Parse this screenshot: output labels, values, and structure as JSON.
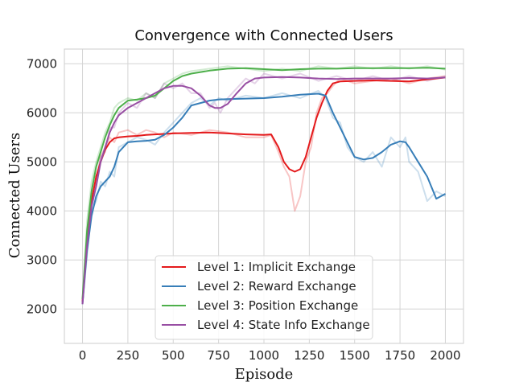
{
  "chart_data": {
    "type": "line",
    "title": "Convergence with Connected Users",
    "xlabel": "Episode",
    "ylabel": "Connected Users",
    "xlim": [
      -100,
      2100
    ],
    "ylim": [
      1300,
      7300
    ],
    "xticks": [
      0,
      250,
      500,
      750,
      1000,
      1250,
      1500,
      1750,
      2000
    ],
    "yticks": [
      2000,
      3000,
      4000,
      5000,
      6000,
      7000
    ],
    "grid": true,
    "legend_position": "lower-center",
    "series": [
      {
        "name": "Level 1: Implicit Exchange",
        "color": "#e41a1c",
        "x": [
          0,
          25,
          50,
          75,
          100,
          125,
          150,
          175,
          200,
          250,
          300,
          350,
          400,
          450,
          500,
          600,
          700,
          800,
          900,
          1000,
          1040,
          1080,
          1110,
          1140,
          1170,
          1200,
          1230,
          1260,
          1290,
          1320,
          1350,
          1380,
          1420,
          1500,
          1600,
          1700,
          1800,
          1900,
          2000
        ],
        "y": [
          2150,
          3400,
          4200,
          4700,
          5000,
          5250,
          5400,
          5480,
          5500,
          5520,
          5530,
          5550,
          5560,
          5570,
          5580,
          5590,
          5600,
          5580,
          5560,
          5550,
          5560,
          5300,
          5000,
          4850,
          4800,
          4850,
          5100,
          5500,
          5900,
          6200,
          6450,
          6600,
          6640,
          6650,
          6660,
          6650,
          6640,
          6680,
          6720
        ],
        "raw_y": [
          2150,
          3300,
          4300,
          4600,
          5100,
          5300,
          5500,
          5400,
          5600,
          5650,
          5550,
          5650,
          5600,
          5500,
          5600,
          5550,
          5650,
          5600,
          5500,
          5500,
          5550,
          5200,
          4900,
          4700,
          4000,
          4300,
          5000,
          5300,
          6000,
          6300,
          6400,
          6550,
          6700,
          6600,
          6650,
          6700,
          6600,
          6700,
          6750
        ]
      },
      {
        "name": "Level 2: Reward Exchange",
        "color": "#377eb8",
        "x": [
          0,
          25,
          50,
          75,
          100,
          125,
          150,
          175,
          200,
          250,
          300,
          350,
          400,
          450,
          500,
          550,
          600,
          650,
          700,
          750,
          800,
          900,
          1000,
          1100,
          1200,
          1300,
          1340,
          1380,
          1420,
          1460,
          1500,
          1550,
          1600,
          1650,
          1700,
          1750,
          1780,
          1800,
          1850,
          1900,
          1950,
          2000
        ],
        "y": [
          2100,
          3200,
          3900,
          4300,
          4500,
          4600,
          4700,
          4900,
          5200,
          5400,
          5420,
          5430,
          5450,
          5550,
          5700,
          5900,
          6150,
          6200,
          6250,
          6270,
          6280,
          6290,
          6300,
          6330,
          6370,
          6390,
          6350,
          6000,
          5700,
          5400,
          5100,
          5050,
          5080,
          5200,
          5350,
          5420,
          5400,
          5300,
          5000,
          4700,
          4250,
          4350
        ],
        "raw_y": [
          2100,
          3100,
          4000,
          4200,
          4600,
          4500,
          4800,
          4700,
          5300,
          5400,
          5500,
          5450,
          5350,
          5600,
          5800,
          6000,
          6200,
          6300,
          6150,
          6300,
          6250,
          6350,
          6300,
          6400,
          6300,
          6450,
          6300,
          5900,
          5800,
          5300,
          5100,
          5000,
          5200,
          4900,
          5500,
          5300,
          5500,
          5000,
          4800,
          4200,
          4400,
          4300
        ]
      },
      {
        "name": "Level 3: Position Exchange",
        "color": "#4daf4a",
        "x": [
          0,
          25,
          50,
          75,
          100,
          125,
          150,
          175,
          200,
          250,
          300,
          350,
          400,
          450,
          500,
          550,
          600,
          700,
          800,
          900,
          1000,
          1100,
          1200,
          1300,
          1400,
          1500,
          1600,
          1700,
          1800,
          1900,
          2000
        ],
        "y": [
          2200,
          3600,
          4400,
          4900,
          5200,
          5500,
          5750,
          5950,
          6100,
          6250,
          6270,
          6300,
          6350,
          6500,
          6650,
          6750,
          6800,
          6860,
          6900,
          6910,
          6890,
          6870,
          6890,
          6900,
          6900,
          6910,
          6910,
          6910,
          6910,
          6920,
          6900
        ],
        "raw_y": [
          2200,
          3800,
          4600,
          5000,
          5300,
          5600,
          5800,
          6100,
          6200,
          6300,
          6250,
          6400,
          6300,
          6600,
          6700,
          6800,
          6850,
          6900,
          6950,
          6900,
          6850,
          6900,
          6850,
          6950,
          6900,
          6950,
          6900,
          6950,
          6900,
          6950,
          6880
        ]
      },
      {
        "name": "Level 4: State Info Exchange",
        "color": "#984ea3",
        "x": [
          0,
          25,
          50,
          75,
          100,
          125,
          150,
          175,
          200,
          250,
          300,
          350,
          400,
          450,
          500,
          550,
          600,
          650,
          700,
          730,
          760,
          800,
          850,
          900,
          950,
          1000,
          1100,
          1200,
          1300,
          1400,
          1500,
          1600,
          1700,
          1800,
          1900,
          2000
        ],
        "y": [
          2100,
          3300,
          4100,
          4500,
          5000,
          5300,
          5600,
          5800,
          5950,
          6100,
          6200,
          6300,
          6400,
          6500,
          6550,
          6550,
          6500,
          6350,
          6150,
          6100,
          6100,
          6180,
          6400,
          6600,
          6700,
          6720,
          6730,
          6720,
          6700,
          6690,
          6700,
          6700,
          6700,
          6710,
          6700,
          6720
        ],
        "raw_y": [
          2100,
          3400,
          4000,
          4600,
          5100,
          5200,
          5700,
          5700,
          6000,
          6200,
          6100,
          6400,
          6300,
          6600,
          6500,
          6600,
          6400,
          6400,
          6100,
          6200,
          6000,
          6300,
          6500,
          6700,
          6600,
          6800,
          6700,
          6800,
          6650,
          6750,
          6650,
          6750,
          6650,
          6750,
          6650,
          6750
        ]
      }
    ]
  }
}
